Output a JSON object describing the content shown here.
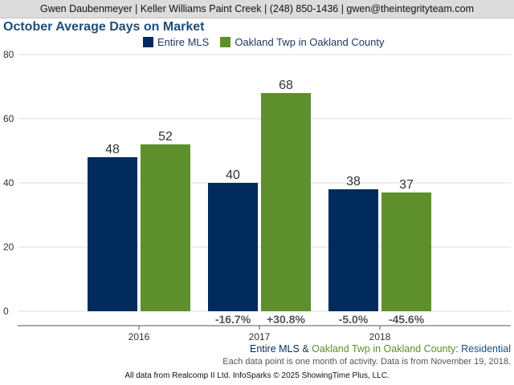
{
  "header": {
    "contact": "Gwen Daubenmeyer | Keller Williams Paint Creek | (248) 850-1436 | gwen@theintegrityteam.com"
  },
  "chart_data": {
    "type": "bar",
    "title": "October Average Days on Market",
    "xlabel": "",
    "ylabel": "",
    "ylim": [
      0,
      80
    ],
    "yticks": [
      "0",
      "20",
      "40",
      "60",
      "80"
    ],
    "grid": true,
    "legend_position": "top",
    "categories": [
      "2016",
      "2017",
      "2018"
    ],
    "series": [
      {
        "name": "Entire MLS",
        "color": "#002b5c",
        "values": [
          48,
          40,
          38
        ],
        "labels": [
          "48",
          "40",
          "38"
        ],
        "changes": [
          "",
          "-16.7%",
          "-5.0%"
        ]
      },
      {
        "name": "Oakland Twp in Oakland County",
        "color": "#5e8f2d",
        "values": [
          52,
          68,
          37
        ],
        "labels": [
          "52",
          "68",
          "37"
        ],
        "changes": [
          "",
          "+30.8%",
          "-45.6%"
        ]
      }
    ]
  },
  "subtitle": {
    "series1": "Entire MLS",
    "amp": "&",
    "series2": "Oakland Twp in Oakland County",
    "suffix": ": Residential",
    "note": "Each data point is one month of activity. Data is from November 19, 2018."
  },
  "footer": {
    "text": "All data from Realcomp II Ltd. InfoSparks © 2025 ShowingTime Plus, LLC."
  },
  "colors": {
    "series1": "#002b5c",
    "series2": "#5e8f2d",
    "title": "#1f4e79",
    "subtitle_suffix": "#1f4e79"
  }
}
